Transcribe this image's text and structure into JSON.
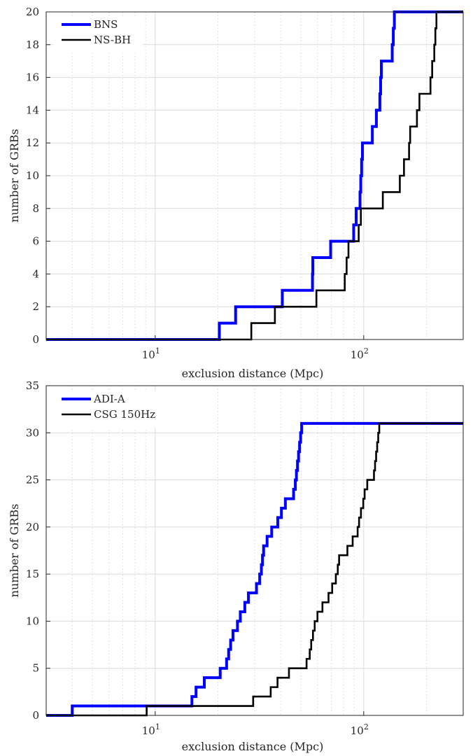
{
  "chart_data": [
    {
      "type": "line",
      "subtype": "cumulative-step",
      "xscale": "log",
      "xlim": [
        3,
        300
      ],
      "ylim": [
        0,
        20
      ],
      "xticks": [
        10,
        100
      ],
      "xtick_labels": [
        "10^1",
        "10^2"
      ],
      "yticks": [
        0,
        2,
        4,
        6,
        8,
        10,
        12,
        14,
        16,
        18,
        20
      ],
      "ytick_labels": [
        "0",
        "2",
        "4",
        "6",
        "8",
        "10",
        "12",
        "14",
        "16",
        "18",
        "20"
      ],
      "grid": true,
      "minor_grid_x": true,
      "legend_position": "top-left",
      "xlabel": "exclusion distance (Mpc)",
      "ylabel": "number of GRBs",
      "series": [
        {
          "name": "BNS",
          "color": "#0000ff",
          "x": [
            20.3,
            24.3,
            40.7,
            56.8,
            57.0,
            69.4,
            89.5,
            92.0,
            96.0,
            96.8,
            97.7,
            98.6,
            110,
            115,
            119.5,
            120.5,
            121.5,
            137
          ],
          "y": [
            1,
            2,
            3,
            4,
            5,
            6,
            7,
            8,
            9,
            10,
            11,
            12,
            13,
            14,
            15,
            16,
            17,
            18
          ]
        },
        {
          "name": "NS-BH",
          "color": "#000000",
          "x": [
            28.9,
            37.5,
            59.3,
            81.1,
            82.8,
            84.5,
            94.6,
            96.9,
            123.5,
            149,
            156,
            165,
            167,
            180,
            185,
            209,
            213,
            218
          ],
          "y": [
            1,
            2,
            3,
            4,
            5,
            6,
            7,
            8,
            9,
            10,
            11,
            12,
            13,
            14,
            15,
            16,
            17,
            18
          ]
        }
      ]
    },
    {
      "type": "line",
      "subtype": "cumulative-step",
      "xscale": "log",
      "xlim": [
        3,
        300
      ],
      "ylim": [
        0,
        35
      ],
      "xticks": [
        10,
        100
      ],
      "xtick_labels": [
        "10^1",
        "10^2"
      ],
      "yticks": [
        0,
        5,
        10,
        15,
        20,
        25,
        30,
        35
      ],
      "ytick_labels": [
        "0",
        "5",
        "10",
        "15",
        "20",
        "25",
        "30",
        "35"
      ],
      "grid": true,
      "minor_grid_x": true,
      "legend_position": "top-left",
      "xlabel": "exclusion distance (Mpc)",
      "ylabel": "number of GRBs",
      "series": [
        {
          "name": "ADI-A",
          "color": "#0000ff",
          "x": [
            4.0,
            15.0,
            15.7,
            17.2,
            20.5,
            22.0,
            22.5,
            23.0,
            23.6,
            24.8,
            25.6,
            26.9,
            28.0,
            30.6,
            31.7,
            32.3,
            32.7,
            33.1,
            34.4,
            36.2,
            38.7,
            40.3,
            42.1,
            46.1,
            47.0
          ],
          "y": [
            1,
            2,
            3,
            4,
            5,
            6,
            7,
            8,
            9,
            10,
            11,
            12,
            13,
            14,
            15,
            16,
            17,
            18,
            19,
            20,
            21,
            22,
            23,
            24,
            25
          ]
        },
        {
          "name": "CSG 150Hz",
          "color": "#000000",
          "x": [
            9.1,
            29.5,
            35.8,
            38.6,
            43.8,
            53.2,
            55.1,
            56.0,
            57.1,
            58.2,
            60.0,
            63.4,
            67.8,
            70.6,
            73.5,
            75.1,
            76.2,
            83.5,
            88.5,
            93.5,
            95.0,
            97.0,
            99.5,
            101,
            104,
            112
          ],
          "y": [
            1,
            2,
            3,
            4,
            5,
            6,
            7,
            8,
            9,
            10,
            11,
            12,
            13,
            14,
            15,
            16,
            17,
            18,
            19,
            20,
            21,
            22,
            23,
            24,
            25,
            26
          ]
        }
      ]
    }
  ]
}
